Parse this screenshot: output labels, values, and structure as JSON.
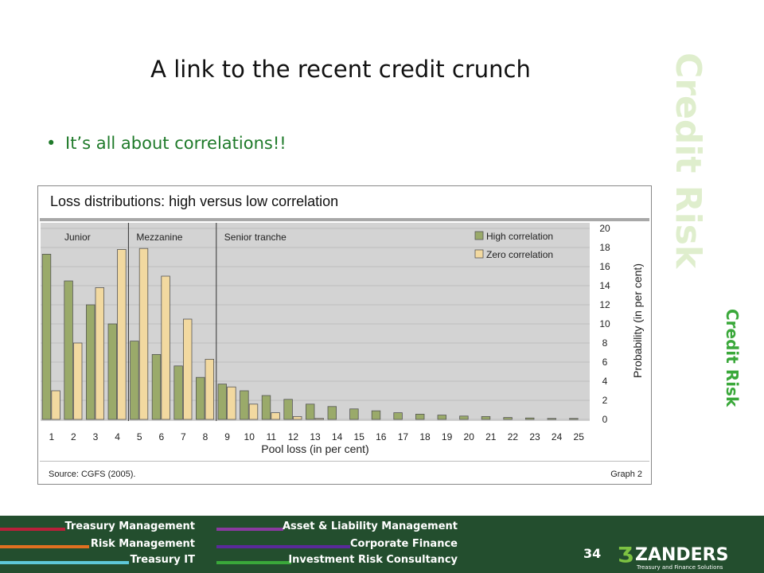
{
  "slide": {
    "title": "A link to the recent credit crunch",
    "bullet": "It’s all about correlations!!",
    "watermark": "Credit Risk",
    "side_label": "Credit Risk",
    "page_number": "34"
  },
  "footer": {
    "left_items": [
      "Treasury Management",
      "Risk Management",
      "Treasury IT"
    ],
    "right_items": [
      "Asset & Liability Management",
      "Corporate Finance",
      "Investment Risk Consultancy"
    ],
    "left_colors": [
      "#b8203a",
      "#e07020",
      "#5ec8d8"
    ],
    "right_colors": [
      "#8a3aa0",
      "#5a2a9a",
      "#3aa83a"
    ],
    "logo_text": "ZANDERS",
    "logo_tagline": "Treasury and Finance Solutions"
  },
  "chart_data": {
    "type": "bar",
    "title": "Loss distributions: high versus low correlation",
    "xlabel": "Pool loss (in per cent)",
    "ylabel": "Probability (in per cent)",
    "ylim": [
      0,
      20
    ],
    "yticks": [
      "0",
      "2",
      "4",
      "6",
      "8",
      "10",
      "12",
      "14",
      "16",
      "18",
      "20"
    ],
    "categories": [
      "1",
      "2",
      "3",
      "4",
      "5",
      "6",
      "7",
      "8",
      "9",
      "10",
      "11",
      "12",
      "13",
      "14",
      "15",
      "16",
      "17",
      "18",
      "19",
      "20",
      "21",
      "22",
      "23",
      "24",
      "25"
    ],
    "series": [
      {
        "name": "High correlation",
        "color": "#9aaa6a",
        "values": [
          17.3,
          14.5,
          12.0,
          10.0,
          8.2,
          6.8,
          5.6,
          4.4,
          3.7,
          3.0,
          2.5,
          2.1,
          1.6,
          1.35,
          1.1,
          0.9,
          0.7,
          0.55,
          0.45,
          0.35,
          0.3,
          0.2,
          0.15,
          0.1,
          0.1
        ]
      },
      {
        "name": "Zero correlation",
        "color": "#f2d9a0",
        "values": [
          3.0,
          8.0,
          13.8,
          17.8,
          17.9,
          15.0,
          10.5,
          6.3,
          3.4,
          1.6,
          0.7,
          0.3,
          0.1,
          0,
          0,
          0,
          0,
          0,
          0,
          0,
          0,
          0,
          0,
          0,
          0
        ]
      }
    ],
    "sections": [
      "Junior",
      "Mezzanine",
      "Senior tranche"
    ],
    "legend_position": "top-right",
    "source": "Source: CGFS (2005).",
    "graph_label": "Graph 2"
  }
}
